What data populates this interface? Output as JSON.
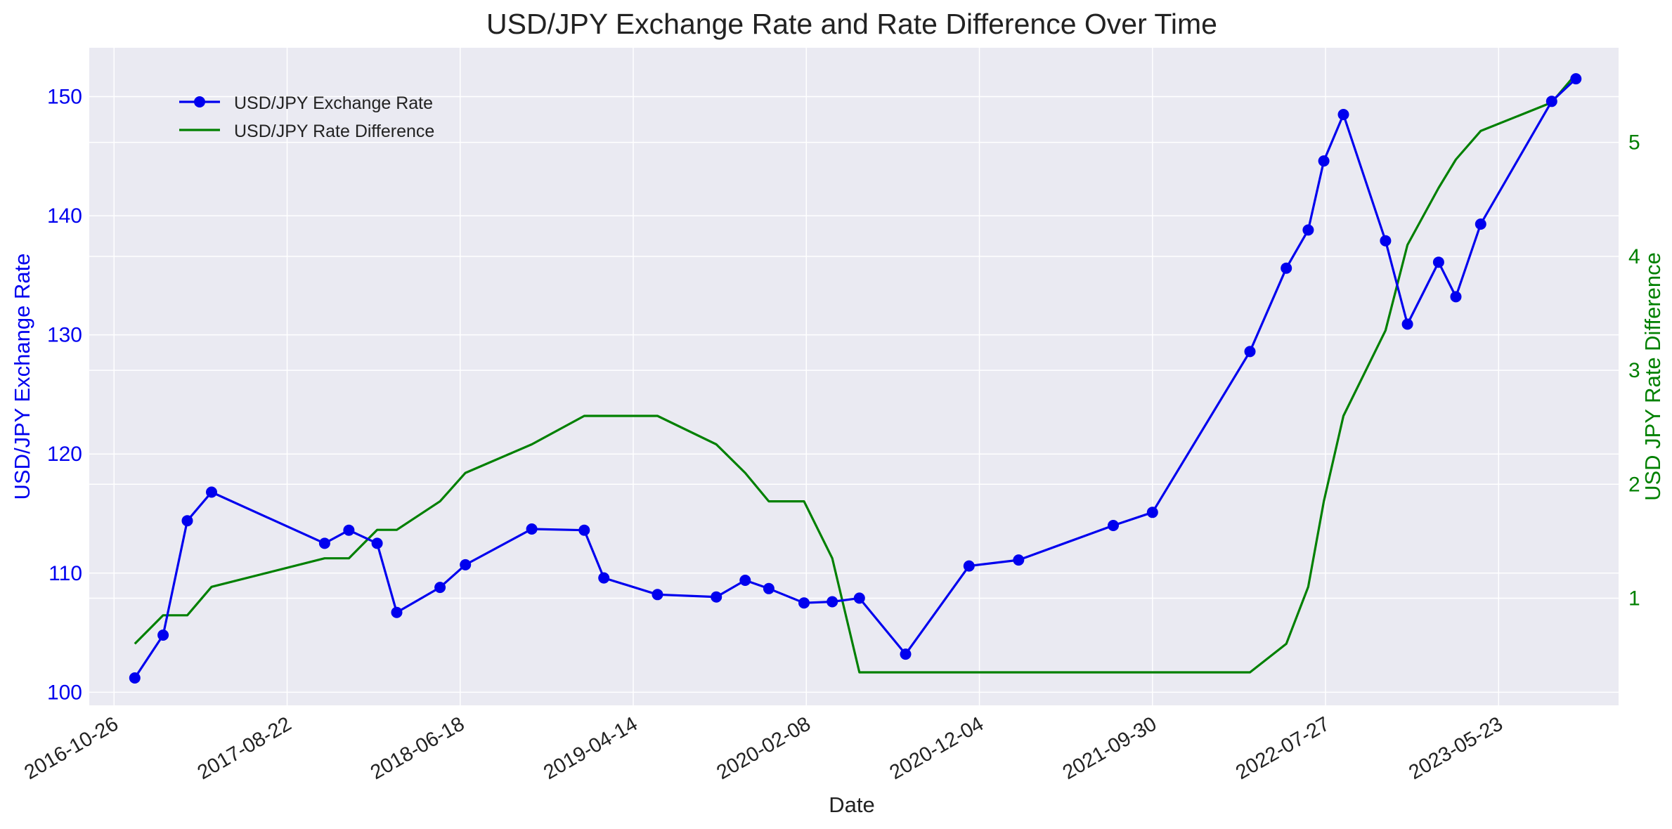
{
  "chart_data": {
    "type": "line",
    "title": "USD/JPY Exchange Rate and Rate Difference Over Time",
    "xlabel": "Date",
    "ylabel_left": "USD/JPY Exchange Rate",
    "ylabel_right": "USD JPY Rate Difference",
    "x_ticks": [
      "2016-10-26",
      "2017-08-22",
      "2018-06-18",
      "2019-04-14",
      "2020-02-08",
      "2020-12-04",
      "2021-09-30",
      "2022-07-27",
      "2023-05-23"
    ],
    "y_left_ticks": [
      100,
      110,
      120,
      130,
      140,
      150
    ],
    "y_right_ticks": [
      1,
      2,
      3,
      4,
      5
    ],
    "y_left_lim": [
      98.9,
      154.1
    ],
    "y_right_lim": [
      0.06,
      5.83
    ],
    "x_range": [
      "2016-09-13",
      "2023-12-17"
    ],
    "grid": true,
    "legend_position": "upper-left",
    "colors": {
      "rate": "#0000ee",
      "difference": "#008000",
      "background": "#eaeaf2"
    },
    "series": [
      {
        "name": "USD/JPY Exchange Rate",
        "axis": "left",
        "marker": "circle",
        "color": "#0000ee",
        "points": [
          [
            "2016-12-01",
            101.2
          ],
          [
            "2017-01-19",
            104.8
          ],
          [
            "2017-03-02",
            114.4
          ],
          [
            "2017-04-13",
            116.8
          ],
          [
            "2017-10-26",
            112.5
          ],
          [
            "2017-12-07",
            113.6
          ],
          [
            "2018-01-25",
            112.5
          ],
          [
            "2018-02-28",
            106.7
          ],
          [
            "2018-05-14",
            108.8
          ],
          [
            "2018-06-27",
            110.7
          ],
          [
            "2018-10-20",
            113.7
          ],
          [
            "2019-01-19",
            113.6
          ],
          [
            "2019-02-22",
            109.6
          ],
          [
            "2019-05-26",
            108.2
          ],
          [
            "2019-09-05",
            108.0
          ],
          [
            "2019-10-25",
            109.4
          ],
          [
            "2019-12-05",
            108.7
          ],
          [
            "2020-02-04",
            107.5
          ],
          [
            "2020-03-24",
            107.6
          ],
          [
            "2020-05-10",
            107.9
          ],
          [
            "2020-07-29",
            103.2
          ],
          [
            "2020-11-16",
            110.6
          ],
          [
            "2021-02-10",
            111.1
          ],
          [
            "2021-07-24",
            114.0
          ],
          [
            "2021-09-30",
            115.1
          ],
          [
            "2022-03-18",
            128.6
          ],
          [
            "2022-05-20",
            135.6
          ],
          [
            "2022-06-27",
            138.8
          ],
          [
            "2022-07-24",
            144.6
          ],
          [
            "2022-08-27",
            148.5
          ],
          [
            "2022-11-08",
            137.9
          ],
          [
            "2022-12-16",
            130.9
          ],
          [
            "2023-02-08",
            136.1
          ],
          [
            "2023-03-10",
            133.2
          ],
          [
            "2023-04-22",
            139.3
          ],
          [
            "2023-08-23",
            149.6
          ],
          [
            "2023-10-04",
            151.5
          ]
        ]
      },
      {
        "name": "USD/JPY Rate Difference",
        "axis": "right",
        "marker": "none",
        "color": "#008000",
        "points": [
          [
            "2016-12-01",
            0.6
          ],
          [
            "2017-01-19",
            0.85
          ],
          [
            "2017-03-02",
            0.85
          ],
          [
            "2017-04-13",
            1.1
          ],
          [
            "2017-10-26",
            1.35
          ],
          [
            "2017-12-07",
            1.35
          ],
          [
            "2018-01-25",
            1.6
          ],
          [
            "2018-02-28",
            1.6
          ],
          [
            "2018-05-14",
            1.85
          ],
          [
            "2018-06-27",
            2.1
          ],
          [
            "2018-10-20",
            2.35
          ],
          [
            "2019-01-19",
            2.6
          ],
          [
            "2019-05-26",
            2.6
          ],
          [
            "2019-09-05",
            2.35
          ],
          [
            "2019-10-25",
            2.1
          ],
          [
            "2019-12-05",
            1.85
          ],
          [
            "2020-02-04",
            1.85
          ],
          [
            "2020-03-24",
            1.35
          ],
          [
            "2020-05-10",
            0.35
          ],
          [
            "2021-09-30",
            0.35
          ],
          [
            "2022-03-18",
            0.35
          ],
          [
            "2022-05-20",
            0.6
          ],
          [
            "2022-06-27",
            1.1
          ],
          [
            "2022-07-24",
            1.85
          ],
          [
            "2022-08-27",
            2.6
          ],
          [
            "2022-11-08",
            3.35
          ],
          [
            "2022-12-16",
            4.1
          ],
          [
            "2023-02-08",
            4.6
          ],
          [
            "2023-03-10",
            4.85
          ],
          [
            "2023-04-22",
            5.1
          ],
          [
            "2023-08-23",
            5.35
          ],
          [
            "2023-10-04",
            5.6
          ]
        ]
      }
    ]
  }
}
